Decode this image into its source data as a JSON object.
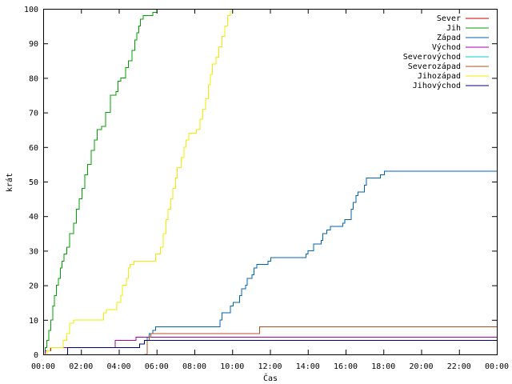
{
  "chart_data": {
    "type": "line",
    "title": "",
    "xlabel": "Čas",
    "ylabel": "krát",
    "xlim": [
      0,
      24
    ],
    "ylim": [
      0,
      100
    ],
    "x_ticks": [
      0,
      2,
      4,
      6,
      8,
      10,
      12,
      14,
      16,
      18,
      20,
      22,
      24
    ],
    "x_tick_labels": [
      "00:00",
      "02:00",
      "04:00",
      "06:00",
      "08:00",
      "10:00",
      "12:00",
      "14:00",
      "16:00",
      "18:00",
      "20:00",
      "22:00",
      "00:00"
    ],
    "y_ticks": [
      0,
      10,
      20,
      30,
      40,
      50,
      60,
      70,
      80,
      90,
      100
    ],
    "y_tick_labels": [
      "0",
      "10",
      "20",
      "30",
      "40",
      "50",
      "60",
      "70",
      "80",
      "90",
      "100"
    ],
    "grid": false,
    "legend_position": "top-right",
    "series": [
      {
        "name": "Sever",
        "color": "#cc0000",
        "points": [
          [
            0,
            0
          ]
        ]
      },
      {
        "name": "Jih",
        "color": "#00a000",
        "points": [
          [
            0.05,
            0
          ],
          [
            0.1,
            2
          ],
          [
            0.2,
            4
          ],
          [
            0.3,
            7
          ],
          [
            0.4,
            10
          ],
          [
            0.5,
            14
          ],
          [
            0.6,
            17
          ],
          [
            0.7,
            20
          ],
          [
            0.8,
            22
          ],
          [
            0.9,
            25
          ],
          [
            1.0,
            27
          ],
          [
            1.1,
            29
          ],
          [
            1.25,
            31
          ],
          [
            1.4,
            35
          ],
          [
            1.6,
            38
          ],
          [
            1.75,
            42
          ],
          [
            1.9,
            45
          ],
          [
            2.05,
            48
          ],
          [
            2.2,
            52
          ],
          [
            2.35,
            55
          ],
          [
            2.55,
            59
          ],
          [
            2.7,
            62
          ],
          [
            2.85,
            65
          ],
          [
            3.1,
            66
          ],
          [
            3.3,
            70
          ],
          [
            3.55,
            75
          ],
          [
            3.85,
            76
          ],
          [
            3.95,
            79
          ],
          [
            4.1,
            80
          ],
          [
            4.35,
            83
          ],
          [
            4.5,
            85
          ],
          [
            4.7,
            88
          ],
          [
            4.85,
            91
          ],
          [
            4.95,
            93
          ],
          [
            5.05,
            95
          ],
          [
            5.15,
            97
          ],
          [
            5.3,
            98
          ],
          [
            5.8,
            99
          ],
          [
            6.0,
            100
          ]
        ]
      },
      {
        "name": "Západ",
        "color": "#0066b3",
        "points": [
          [
            5.45,
            0
          ],
          [
            5.5,
            5
          ],
          [
            5.6,
            6
          ],
          [
            5.8,
            7
          ],
          [
            5.95,
            8
          ],
          [
            9.3,
            8
          ],
          [
            9.35,
            10
          ],
          [
            9.45,
            12
          ],
          [
            9.9,
            14
          ],
          [
            10.05,
            15
          ],
          [
            10.4,
            17
          ],
          [
            10.5,
            19
          ],
          [
            10.7,
            20
          ],
          [
            10.8,
            22
          ],
          [
            11.05,
            23
          ],
          [
            11.15,
            25
          ],
          [
            11.3,
            26
          ],
          [
            11.9,
            27
          ],
          [
            12.05,
            28
          ],
          [
            13.9,
            29
          ],
          [
            14.0,
            30
          ],
          [
            14.3,
            32
          ],
          [
            14.7,
            33
          ],
          [
            14.8,
            35
          ],
          [
            15.0,
            36
          ],
          [
            15.2,
            37
          ],
          [
            15.85,
            38
          ],
          [
            15.95,
            39
          ],
          [
            16.3,
            42
          ],
          [
            16.4,
            44
          ],
          [
            16.55,
            46
          ],
          [
            16.65,
            47
          ],
          [
            17.0,
            49
          ],
          [
            17.1,
            51
          ],
          [
            17.85,
            52
          ],
          [
            18.05,
            53
          ],
          [
            24,
            53
          ]
        ]
      },
      {
        "name": "Východ",
        "color": "#aa00aa",
        "points": [
          [
            0,
            0
          ],
          [
            0.1,
            1
          ],
          [
            0.4,
            2
          ],
          [
            3.7,
            2
          ],
          [
            3.8,
            4
          ],
          [
            4.9,
            5
          ],
          [
            5.2,
            5
          ],
          [
            24,
            5
          ]
        ]
      },
      {
        "name": "Severovýchod",
        "color": "#00cccc",
        "points": [
          [
            0,
            0
          ]
        ]
      },
      {
        "name": "Severozápad",
        "color": "#b05020",
        "points": [
          [
            5.35,
            0
          ],
          [
            5.5,
            4
          ],
          [
            5.6,
            5
          ],
          [
            5.7,
            6
          ],
          [
            11.35,
            6
          ],
          [
            11.45,
            8
          ],
          [
            24,
            8
          ]
        ]
      },
      {
        "name": "Jihozápad",
        "color": "#eeee00",
        "points": [
          [
            0,
            0
          ],
          [
            0.2,
            1
          ],
          [
            0.35,
            2
          ],
          [
            0.9,
            2
          ],
          [
            1.05,
            4
          ],
          [
            1.25,
            6
          ],
          [
            1.4,
            9
          ],
          [
            1.6,
            10
          ],
          [
            3.1,
            10
          ],
          [
            3.2,
            12
          ],
          [
            3.35,
            13
          ],
          [
            3.8,
            13
          ],
          [
            3.9,
            15
          ],
          [
            4.1,
            17
          ],
          [
            4.2,
            20
          ],
          [
            4.4,
            22
          ],
          [
            4.5,
            25
          ],
          [
            4.6,
            26
          ],
          [
            4.8,
            27
          ],
          [
            5.9,
            27
          ],
          [
            5.95,
            29
          ],
          [
            6.2,
            31
          ],
          [
            6.35,
            35
          ],
          [
            6.5,
            39
          ],
          [
            6.6,
            42
          ],
          [
            6.75,
            45
          ],
          [
            6.85,
            48
          ],
          [
            7.0,
            51
          ],
          [
            7.1,
            54
          ],
          [
            7.3,
            57
          ],
          [
            7.45,
            60
          ],
          [
            7.55,
            62
          ],
          [
            7.7,
            64
          ],
          [
            8.1,
            65
          ],
          [
            8.3,
            68
          ],
          [
            8.45,
            71
          ],
          [
            8.6,
            74
          ],
          [
            8.75,
            78
          ],
          [
            8.85,
            81
          ],
          [
            8.95,
            84
          ],
          [
            9.15,
            86
          ],
          [
            9.3,
            89
          ],
          [
            9.45,
            92
          ],
          [
            9.6,
            95
          ],
          [
            9.75,
            98
          ],
          [
            9.9,
            100
          ]
        ]
      },
      {
        "name": "Jihovýchod",
        "color": "#000080",
        "points": [
          [
            1.25,
            0
          ],
          [
            1.3,
            2
          ],
          [
            3.3,
            2
          ],
          [
            3.35,
            2
          ],
          [
            5.05,
            2
          ],
          [
            5.1,
            3
          ],
          [
            5.35,
            4
          ],
          [
            24,
            4
          ]
        ]
      }
    ]
  }
}
